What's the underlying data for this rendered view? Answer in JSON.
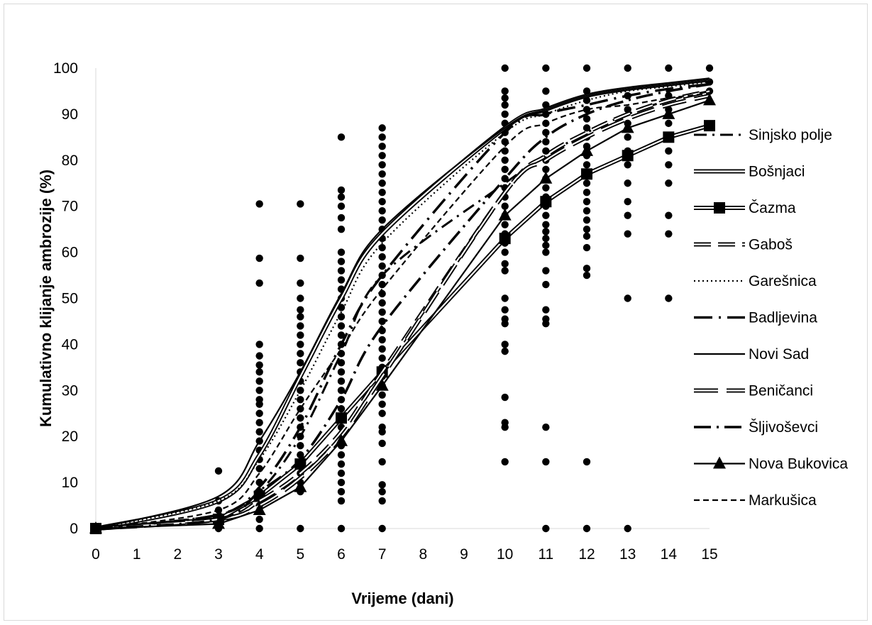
{
  "chart_data": {
    "type": "line",
    "title": "",
    "xlabel": "Vrijeme (dani)",
    "ylabel": "Kumulativno klijanje ambrozije (%)",
    "x_categories": [
      "0",
      "1",
      "2",
      "3",
      "4",
      "5",
      "6",
      "7",
      "8",
      "9",
      "10",
      "11",
      "12",
      "13",
      "14",
      "15"
    ],
    "y_ticks": [
      "0",
      "10",
      "20",
      "30",
      "40",
      "50",
      "60",
      "70",
      "80",
      "90",
      "100"
    ],
    "ylim": [
      0,
      100
    ],
    "grid": false,
    "legend_position": "right",
    "series": [
      {
        "name": "Sinjsko polje",
        "style": "dash-dot-long",
        "marker": "none",
        "x": [
          0,
          3,
          4,
          5,
          6,
          7,
          10,
          11,
          12,
          13,
          14,
          15
        ],
        "y": [
          0,
          3,
          8,
          20,
          38,
          55,
          75,
          81,
          86,
          90,
          93,
          95
        ]
      },
      {
        "name": "Bošnjaci",
        "style": "double",
        "marker": "none",
        "x": [
          0,
          3,
          4,
          5,
          6,
          7,
          10,
          11,
          12,
          13,
          14,
          15
        ],
        "y": [
          0,
          6,
          16,
          33,
          50,
          64,
          87,
          91,
          94,
          95.5,
          96.5,
          97.5
        ]
      },
      {
        "name": "Čazma",
        "style": "double",
        "marker": "square",
        "x": [
          0,
          3,
          4,
          5,
          6,
          7,
          10,
          11,
          12,
          13,
          14,
          15
        ],
        "y": [
          0,
          2,
          7,
          14,
          24,
          34,
          63,
          71,
          77,
          81,
          85,
          87.5
        ]
      },
      {
        "name": "Gaboš",
        "style": "double-dash",
        "marker": "none",
        "x": [
          0,
          3,
          4,
          5,
          6,
          7,
          10,
          11,
          12,
          13,
          14,
          15
        ],
        "y": [
          0,
          2,
          6,
          12,
          21,
          34,
          73,
          81,
          86,
          90,
          93,
          95
        ]
      },
      {
        "name": "Garešnica",
        "style": "dotted",
        "marker": "none",
        "x": [
          0,
          3,
          4,
          5,
          6,
          7,
          10,
          11,
          12,
          13,
          14,
          15
        ],
        "y": [
          0,
          6,
          15,
          30,
          47,
          62,
          86,
          90,
          93,
          95,
          96,
          97
        ]
      },
      {
        "name": "Badljevina",
        "style": "long-dash-dot",
        "marker": "none",
        "x": [
          0,
          3,
          4,
          5,
          6,
          7,
          10,
          11,
          12,
          13,
          14,
          15
        ],
        "y": [
          0,
          3,
          9,
          22,
          40,
          55,
          86,
          90,
          92,
          94,
          95.5,
          96.5
        ]
      },
      {
        "name": "Novi Sad",
        "style": "solid",
        "marker": "none",
        "x": [
          0,
          3,
          4,
          5,
          6,
          7,
          10,
          11,
          12,
          13,
          14,
          15
        ],
        "y": [
          0,
          7,
          19,
          34,
          51,
          65,
          87,
          91,
          94,
          95.5,
          96.5,
          97.5
        ]
      },
      {
        "name": "Beničanci",
        "style": "double-long-dash",
        "marker": "none",
        "x": [
          0,
          3,
          4,
          5,
          6,
          7,
          10,
          11,
          12,
          13,
          14,
          15
        ],
        "y": [
          0,
          2,
          5,
          11,
          20,
          33,
          73,
          80,
          85,
          89,
          92,
          94
        ]
      },
      {
        "name": "Šljivoševci",
        "style": "long-dash-dot-small",
        "marker": "none",
        "x": [
          0,
          3,
          4,
          5,
          6,
          7,
          10,
          11,
          12,
          13,
          14,
          15
        ],
        "y": [
          0,
          2,
          8,
          15,
          28,
          44,
          76,
          85,
          90,
          93,
          95,
          96.5
        ]
      },
      {
        "name": "Nova Bukovica",
        "style": "solid",
        "marker": "triangle",
        "x": [
          0,
          3,
          4,
          5,
          6,
          7,
          10,
          11,
          12,
          13,
          14,
          15
        ],
        "y": [
          0,
          1,
          4,
          9,
          19,
          31,
          68,
          76,
          82,
          87,
          90,
          93
        ]
      },
      {
        "name": "Markušica",
        "style": "short-dash",
        "marker": "none",
        "x": [
          0,
          3,
          4,
          5,
          6,
          7,
          10,
          11,
          12,
          13,
          14,
          15
        ],
        "y": [
          0,
          4,
          12,
          26,
          39,
          52,
          83,
          88,
          91,
          92,
          93.5,
          94.5
        ]
      }
    ],
    "scatter_points": [
      {
        "x": 0,
        "y": [
          0
        ]
      },
      {
        "x": 3,
        "y": [
          0,
          2,
          4,
          6,
          12.5
        ]
      },
      {
        "x": 4,
        "y": [
          0,
          2,
          5,
          8,
          10,
          13,
          15,
          17,
          19,
          21,
          23,
          25,
          27,
          28,
          30,
          32,
          34,
          35.5,
          37.5,
          40,
          53.3,
          58.7,
          70.5
        ]
      },
      {
        "x": 5,
        "y": [
          0,
          8,
          10,
          12,
          14,
          16,
          18,
          20,
          22,
          24,
          26,
          28,
          30,
          32,
          34,
          36,
          38,
          40,
          42,
          44,
          46,
          47.5,
          50,
          53.3,
          58.7,
          70.5
        ]
      },
      {
        "x": 6,
        "y": [
          0,
          6,
          8,
          10,
          12,
          14,
          16,
          18,
          20,
          22,
          24,
          26,
          28,
          30,
          32,
          34,
          36,
          38,
          40,
          42,
          44,
          46,
          48,
          50,
          52,
          54,
          56,
          58,
          60,
          65,
          67.5,
          70,
          72,
          73.5,
          85
        ]
      },
      {
        "x": 7,
        "y": [
          0,
          6,
          8,
          9.5,
          14.5,
          18.5,
          21,
          22,
          25,
          27,
          29,
          31,
          33,
          35,
          37,
          39,
          41,
          43,
          45,
          47,
          49,
          51,
          53,
          55,
          57,
          59,
          61,
          63,
          65,
          67,
          69,
          71,
          73,
          75,
          77,
          79,
          81,
          83,
          85,
          87
        ]
      },
      {
        "x": 10,
        "y": [
          14.5,
          22,
          23,
          28.5,
          38.5,
          40,
          44.5,
          45.5,
          47.5,
          50,
          56,
          57.5,
          60,
          62,
          64,
          66,
          68,
          70,
          72,
          74,
          76,
          78,
          80,
          82,
          84,
          86,
          88,
          90,
          92,
          93.5,
          95,
          100
        ]
      },
      {
        "x": 11,
        "y": [
          0,
          14.5,
          22,
          44.5,
          45.5,
          47.5,
          53,
          56,
          60,
          61.5,
          63,
          64.5,
          66,
          68,
          70,
          72,
          74,
          76,
          78,
          80,
          82,
          84,
          86,
          88,
          90,
          92,
          95,
          100
        ]
      },
      {
        "x": 12,
        "y": [
          0,
          14.5,
          55,
          56.5,
          61,
          63.5,
          65,
          67,
          69,
          71,
          73,
          75,
          77,
          79,
          81,
          83,
          85,
          87,
          89,
          91,
          93,
          95,
          100
        ]
      },
      {
        "x": 13,
        "y": [
          0,
          50,
          64,
          68,
          71,
          75,
          79,
          82,
          85,
          88,
          91,
          94,
          100
        ]
      },
      {
        "x": 14,
        "y": [
          50,
          64,
          68,
          75,
          79,
          82,
          85,
          88,
          91,
          94,
          100
        ]
      },
      {
        "x": 15,
        "y": [
          95,
          97,
          100
        ]
      }
    ]
  }
}
